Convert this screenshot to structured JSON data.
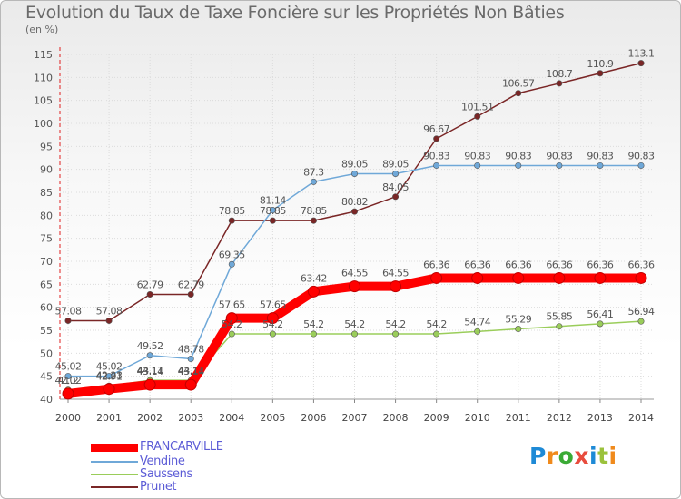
{
  "header": {
    "title": "Evolution du Taux de Taxe Foncière sur les Propriétés Non Bâties",
    "unit_label": "(en %)"
  },
  "logo": {
    "text": "Proxiti"
  },
  "chart_data": {
    "type": "line",
    "title": "Evolution du Taux de Taxe Foncière sur les Propriétés Non Bâties",
    "xlabel": "",
    "ylabel": "(en %)",
    "ylim": [
      40,
      115
    ],
    "yticks": [
      40,
      45,
      50,
      55,
      60,
      65,
      70,
      75,
      80,
      85,
      90,
      95,
      100,
      105,
      110,
      115
    ],
    "categories": [
      "2000",
      "2001",
      "2002",
      "2003",
      "2004",
      "2005",
      "2006",
      "2007",
      "2008",
      "2009",
      "2010",
      "2011",
      "2012",
      "2013",
      "2014"
    ],
    "grid": true,
    "legend_position": "bottom-left",
    "series": [
      {
        "name": "Prunet",
        "color": "#7a2626",
        "values": [
          57.08,
          57.08,
          62.79,
          62.79,
          78.85,
          78.85,
          78.85,
          80.82,
          84.05,
          96.67,
          101.51,
          106.57,
          108.7,
          110.9,
          113.1
        ],
        "labels": [
          "57.08",
          "57.08",
          "62.79",
          "62.79",
          "78.85",
          "78.85",
          "78.85",
          "80.82",
          "84.05",
          "96.67",
          "101.51",
          "106.57",
          "108.7",
          "110.9",
          "113.1"
        ]
      },
      {
        "name": "Vendine",
        "color": "#6fa8d8",
        "values": [
          45.02,
          45.02,
          49.52,
          48.78,
          69.35,
          81.14,
          87.3,
          89.05,
          89.05,
          90.83,
          90.83,
          90.83,
          90.83,
          90.83,
          90.83
        ],
        "labels": [
          "45.02",
          "45.02",
          "49.52",
          "48.78",
          "69.35",
          "81.14",
          "87.3",
          "89.05",
          "89.05",
          "90.83",
          "90.83",
          "90.83",
          "90.83",
          "90.83",
          "90.83"
        ]
      },
      {
        "name": "Saussens",
        "color": "#9acd5a",
        "values": [
          42.02,
          42.91,
          44.11,
          44.11,
          54.2,
          54.2,
          54.2,
          54.2,
          54.2,
          54.2,
          54.74,
          55.29,
          55.85,
          56.41,
          56.94
        ],
        "labels": [
          "42.02",
          "42.91",
          "44.11",
          "44.11",
          "54.2",
          "54.2",
          "54.2",
          "54.2",
          "54.2",
          "54.2",
          "54.74",
          "55.29",
          "55.85",
          "56.41",
          "56.94"
        ]
      },
      {
        "name": "FRANCARVILLE",
        "color": "#ff0000",
        "values": [
          41.2,
          42.23,
          43.14,
          43.14,
          57.65,
          57.65,
          63.42,
          64.55,
          64.55,
          66.36,
          66.36,
          66.36,
          66.36,
          66.36,
          66.36
        ],
        "labels": [
          "41.2",
          "42.23",
          "43.14",
          "43.14",
          "57.65",
          "57.65",
          "63.42",
          "64.55",
          "64.55",
          "66.36",
          "66.36",
          "66.36",
          "66.36",
          "66.36",
          "66.36"
        ]
      }
    ]
  }
}
